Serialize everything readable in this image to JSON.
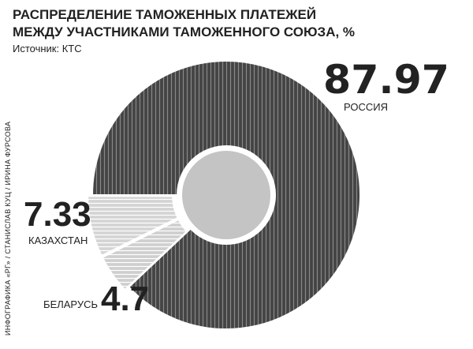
{
  "chart_data": {
    "type": "pie",
    "title": [
      "РАСПРЕДЕЛЕНИЕ ТАМОЖЕННЫХ ПЛАТЕЖЕЙ",
      "МЕЖДУ УЧАСТНИКАМИ ТАМОЖЕННОГО СОЮЗА, %"
    ],
    "subtitle": "Источник: КТС",
    "credit": "ИНФОГРАФИКА «РГ» / СТАНИСЛАВ КУЦ / ИРИНА ФУРСОВА",
    "categories": [
      "РОССИЯ",
      "КАЗАХСТАН",
      "БЕЛАРУСЬ"
    ],
    "values": [
      87.97,
      7.33,
      4.7
    ],
    "colors": [
      "#444444",
      "#d4d4d4",
      "#cfcfcf"
    ]
  }
}
